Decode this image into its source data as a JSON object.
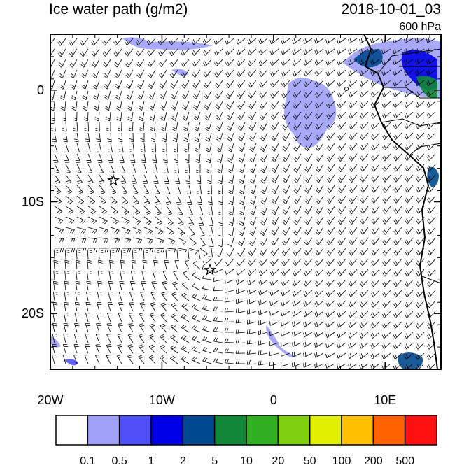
{
  "title": "Ice water path (g/m2)",
  "valid_time": "2018-10-01_03",
  "level": "600 hPa",
  "lon_range": [
    -20,
    15
  ],
  "lat_range": [
    -25,
    5
  ],
  "lon_ticks": [
    {
      "value": -20,
      "label": "20W"
    },
    {
      "value": -10,
      "label": "10W"
    },
    {
      "value": 0,
      "label": "0"
    },
    {
      "value": 10,
      "label": "10E"
    }
  ],
  "lat_ticks": [
    {
      "value": 0,
      "label": "0"
    },
    {
      "value": -10,
      "label": "10S"
    },
    {
      "value": -20,
      "label": "20S"
    }
  ],
  "colorbar": {
    "colors": [
      "#ffffff",
      "#a0a0f8",
      "#5050f8",
      "#0000e8",
      "#004890",
      "#108838",
      "#30b020",
      "#80d010",
      "#e0f000",
      "#ffc000",
      "#ff6000",
      "#ff1010"
    ],
    "levels": [
      0.1,
      0.5,
      1,
      2,
      5,
      10,
      20,
      50,
      100,
      200,
      500
    ]
  }
}
